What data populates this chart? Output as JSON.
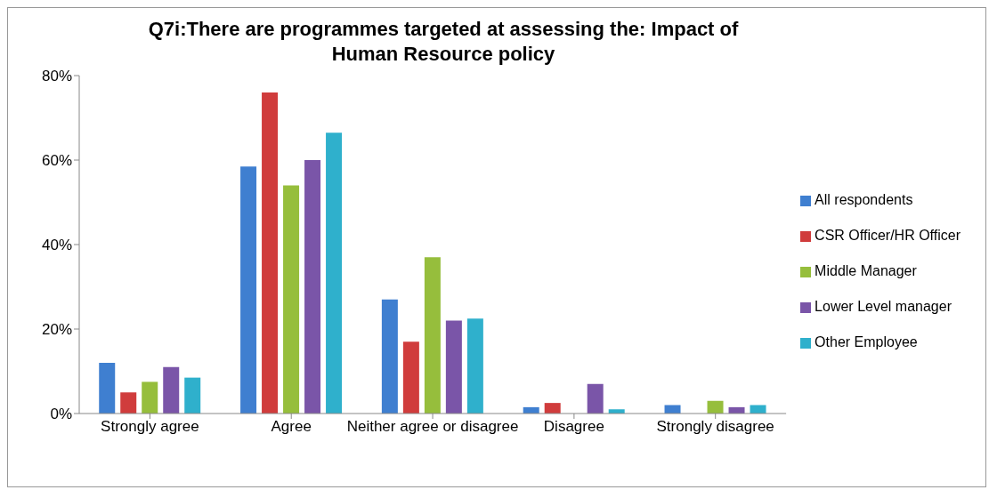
{
  "chart_data": {
    "type": "bar",
    "title": "Q7i:There are programmes targeted at assessing the:  Impact of Human Resource policy",
    "categories": [
      "Strongly agree",
      "Agree",
      "Neither agree or disagree",
      "Disagree",
      "Strongly disagree"
    ],
    "series": [
      {
        "name": "All respondents",
        "color": "#3f7fd0",
        "values": [
          12,
          58.5,
          27,
          1.5,
          2
        ]
      },
      {
        "name": "CSR Officer/HR Officer",
        "color": "#d03c3c",
        "values": [
          5,
          76,
          17,
          2.5,
          0
        ]
      },
      {
        "name": "Middle Manager",
        "color": "#96be3c",
        "values": [
          7.5,
          54,
          37,
          0,
          3
        ]
      },
      {
        "name": "Lower Level manager",
        "color": "#7a55a8",
        "values": [
          11,
          60,
          22,
          7,
          1.5
        ]
      },
      {
        "name": "Other Employee",
        "color": "#2fb0cc",
        "values": [
          8.5,
          66.5,
          22.5,
          1,
          2
        ]
      }
    ],
    "ylim": [
      0,
      80
    ],
    "yticks": [
      {
        "value": 0,
        "label": "0%"
      },
      {
        "value": 20,
        "label": "20%"
      },
      {
        "value": 40,
        "label": "40%"
      },
      {
        "value": 60,
        "label": "60%"
      },
      {
        "value": 80,
        "label": "80%"
      }
    ],
    "grid": false,
    "legend": "right"
  }
}
